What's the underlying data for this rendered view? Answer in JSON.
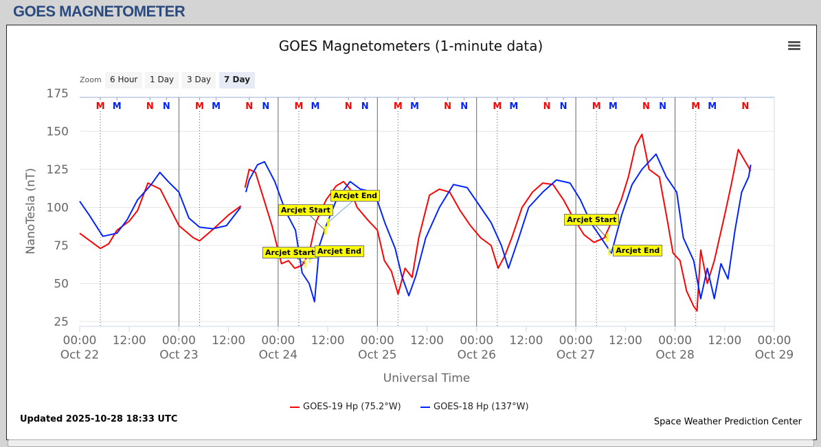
{
  "page": {
    "title": "GOES MAGNETOMETER"
  },
  "chart_ui": {
    "zoom_label": "Zoom",
    "zoom_buttons": [
      "6 Hour",
      "1 Day",
      "3 Day",
      "7 Day"
    ],
    "zoom_active": "7 Day",
    "updated": "Updated 2025-10-28 18:33 UTC",
    "credit": "Space Weather Prediction Center",
    "menu_icon": "hamburger-menu-icon"
  },
  "chart_data": {
    "type": "line",
    "title": "GOES Magnetometers (1-minute data)",
    "xlabel": "Universal Time",
    "ylabel": "NanoTesla (nT)",
    "ylim": [
      25,
      175
    ],
    "yticks": [
      25,
      50,
      75,
      100,
      125,
      150,
      175
    ],
    "xlim_hours": [
      0,
      168
    ],
    "x_units": "hours since Oct 22 00:00 UT",
    "xticks": [
      {
        "h": 0,
        "time": "00:00",
        "date": "Oct 22"
      },
      {
        "h": 12,
        "time": "12:00",
        "date": ""
      },
      {
        "h": 24,
        "time": "00:00",
        "date": "Oct 23"
      },
      {
        "h": 36,
        "time": "12:00",
        "date": ""
      },
      {
        "h": 48,
        "time": "00:00",
        "date": "Oct 24"
      },
      {
        "h": 60,
        "time": "12:00",
        "date": ""
      },
      {
        "h": 72,
        "time": "00:00",
        "date": "Oct 25"
      },
      {
        "h": 84,
        "time": "12:00",
        "date": ""
      },
      {
        "h": 96,
        "time": "00:00",
        "date": "Oct 26"
      },
      {
        "h": 108,
        "time": "12:00",
        "date": ""
      },
      {
        "h": 120,
        "time": "00:00",
        "date": "Oct 27"
      },
      {
        "h": 132,
        "time": "12:00",
        "date": ""
      },
      {
        "h": 144,
        "time": "00:00",
        "date": "Oct 28"
      },
      {
        "h": 156,
        "time": "12:00",
        "date": ""
      },
      {
        "h": 168,
        "time": "00:00",
        "date": "Oct 29"
      }
    ],
    "grid": true,
    "legend_position": "bottom-center",
    "series": [
      {
        "name": "GOES-19 Hp (75.2°W)",
        "color": "#ff0000",
        "points": [
          [
            0,
            83
          ],
          [
            3,
            77
          ],
          [
            5,
            73
          ],
          [
            7,
            76
          ],
          [
            9,
            85
          ],
          [
            12,
            91
          ],
          [
            14,
            98
          ],
          [
            16.5,
            116
          ],
          [
            19.5,
            112
          ],
          [
            24,
            88
          ],
          [
            27.5,
            80
          ],
          [
            29,
            78
          ],
          [
            32,
            85
          ],
          [
            36,
            95
          ],
          [
            39,
            101
          ],
          null,
          [
            40,
            113
          ],
          [
            41,
            125
          ],
          [
            42.5,
            123
          ],
          [
            44,
            110
          ],
          [
            46.5,
            88
          ],
          [
            48.8,
            63
          ],
          [
            50.5,
            65
          ],
          [
            52,
            60
          ],
          [
            53.8,
            62
          ],
          [
            55.5,
            70
          ],
          [
            57.1,
            90
          ],
          [
            59.6,
            105
          ],
          [
            62,
            114
          ],
          [
            63.8,
            117
          ],
          [
            65.4,
            112
          ],
          [
            67.1,
            100
          ],
          [
            69.6,
            92
          ],
          [
            72,
            85
          ],
          [
            73.7,
            65
          ],
          [
            75.4,
            58
          ],
          [
            77,
            43
          ],
          [
            78.7,
            60
          ],
          [
            80.4,
            54
          ],
          [
            82,
            80
          ],
          [
            84.6,
            108
          ],
          [
            87,
            112
          ],
          [
            89.5,
            110
          ],
          [
            92,
            98
          ],
          [
            94.5,
            88
          ],
          [
            97,
            80
          ],
          [
            99.5,
            75
          ],
          [
            101.2,
            60
          ],
          [
            102.8,
            68
          ],
          [
            104.5,
            80
          ],
          [
            107,
            100
          ],
          [
            109.5,
            110
          ],
          [
            112,
            116
          ],
          [
            114.5,
            115
          ],
          [
            117,
            105
          ],
          [
            119.4,
            93
          ],
          [
            122,
            82
          ],
          [
            124.4,
            77
          ],
          [
            126.9,
            80
          ],
          [
            129.4,
            95
          ],
          [
            131,
            105
          ],
          [
            132.7,
            120
          ],
          [
            134.4,
            140
          ],
          [
            136,
            148
          ],
          [
            137.7,
            125
          ],
          [
            140.2,
            120
          ],
          [
            141.9,
            95
          ],
          [
            143.5,
            70
          ],
          [
            145.2,
            65
          ],
          [
            146.8,
            45
          ],
          [
            148.5,
            35
          ],
          [
            149.3,
            32
          ],
          [
            150.2,
            72
          ],
          [
            151.8,
            50
          ],
          [
            153.5,
            65
          ],
          [
            156,
            95
          ],
          [
            157.6,
            115
          ],
          [
            159.3,
            138
          ],
          [
            161,
            130
          ],
          [
            162.3,
            124
          ]
        ]
      },
      {
        "name": "GOES-18 Hp (137°W)",
        "color": "#0022ff",
        "points": [
          [
            0,
            104
          ],
          [
            2.3,
            95
          ],
          [
            5.6,
            81
          ],
          [
            9,
            83
          ],
          [
            11.5,
            92
          ],
          [
            14,
            105
          ],
          [
            17.3,
            115
          ],
          [
            19.4,
            123
          ],
          [
            21.4,
            117
          ],
          [
            24,
            110
          ],
          [
            26.4,
            93
          ],
          [
            29,
            87
          ],
          [
            32.2,
            86
          ],
          [
            35.5,
            88
          ],
          [
            38.9,
            100
          ],
          null,
          [
            40.2,
            110
          ],
          [
            41,
            118
          ],
          [
            43,
            128
          ],
          [
            44.7,
            130
          ],
          [
            47.2,
            117
          ],
          [
            49.7,
            98
          ],
          [
            52.2,
            85
          ],
          [
            53.8,
            57
          ],
          [
            55.5,
            50
          ],
          [
            56.8,
            38
          ],
          [
            58,
            75
          ],
          [
            59.6,
            88
          ],
          [
            62.1,
            105
          ],
          [
            65.4,
            117
          ],
          [
            67.9,
            112
          ],
          [
            71.3,
            110
          ],
          [
            73.8,
            90
          ],
          [
            76.3,
            73
          ],
          [
            77.9,
            55
          ],
          [
            79.6,
            42
          ],
          [
            81.3,
            55
          ],
          [
            83.7,
            80
          ],
          [
            87,
            100
          ],
          [
            90.4,
            115
          ],
          [
            93.7,
            113
          ],
          [
            97,
            100
          ],
          [
            99.5,
            90
          ],
          [
            102,
            75
          ],
          [
            103.7,
            60
          ],
          [
            106.2,
            80
          ],
          [
            108.6,
            100
          ],
          [
            112,
            110
          ],
          [
            115.3,
            118
          ],
          [
            118.6,
            116
          ],
          [
            121.1,
            105
          ],
          [
            123.6,
            90
          ],
          [
            126.1,
            80
          ],
          [
            128.6,
            70
          ],
          [
            131.1,
            95
          ],
          [
            133.6,
            115
          ],
          [
            136,
            125
          ],
          [
            139.4,
            135
          ],
          [
            141.9,
            120
          ],
          [
            144.4,
            110
          ],
          [
            146,
            80
          ],
          [
            148.5,
            65
          ],
          [
            150.2,
            40
          ],
          [
            151.8,
            60
          ],
          [
            153.5,
            40
          ],
          [
            155.1,
            63
          ],
          [
            156.8,
            53
          ],
          [
            158.5,
            85
          ],
          [
            160.1,
            110
          ],
          [
            161.8,
            120
          ],
          [
            162.3,
            128
          ]
        ]
      }
    ],
    "markers": [
      {
        "label": "M",
        "color": "#ff0000",
        "hours": [
          5,
          29,
          53,
          77,
          101,
          125,
          149
        ]
      },
      {
        "label": "M",
        "color": "#0022ff",
        "hours": [
          9,
          33,
          57,
          81,
          105,
          129,
          153
        ]
      },
      {
        "label": "N",
        "color": "#ff0000",
        "hours": [
          17,
          41,
          65,
          89,
          113,
          137,
          161
        ]
      },
      {
        "label": "N",
        "color": "#0022ff",
        "hours": [
          21,
          45,
          69,
          93,
          117,
          141
        ]
      }
    ],
    "annotations": [
      {
        "text": "Arcjet Start",
        "h": 54.5,
        "v": 63
      },
      {
        "text": "Arcjet End",
        "h": 55.5,
        "v": 66
      },
      {
        "text": "Arcjet Start",
        "h": 59.3,
        "v": 85
      },
      {
        "text": "Arcjet End",
        "h": 60,
        "v": 90
      },
      {
        "text": "Arcjet Start",
        "h": 127.5,
        "v": 80
      },
      {
        "text": "Arcjet End",
        "h": 128,
        "v": 71
      }
    ]
  }
}
